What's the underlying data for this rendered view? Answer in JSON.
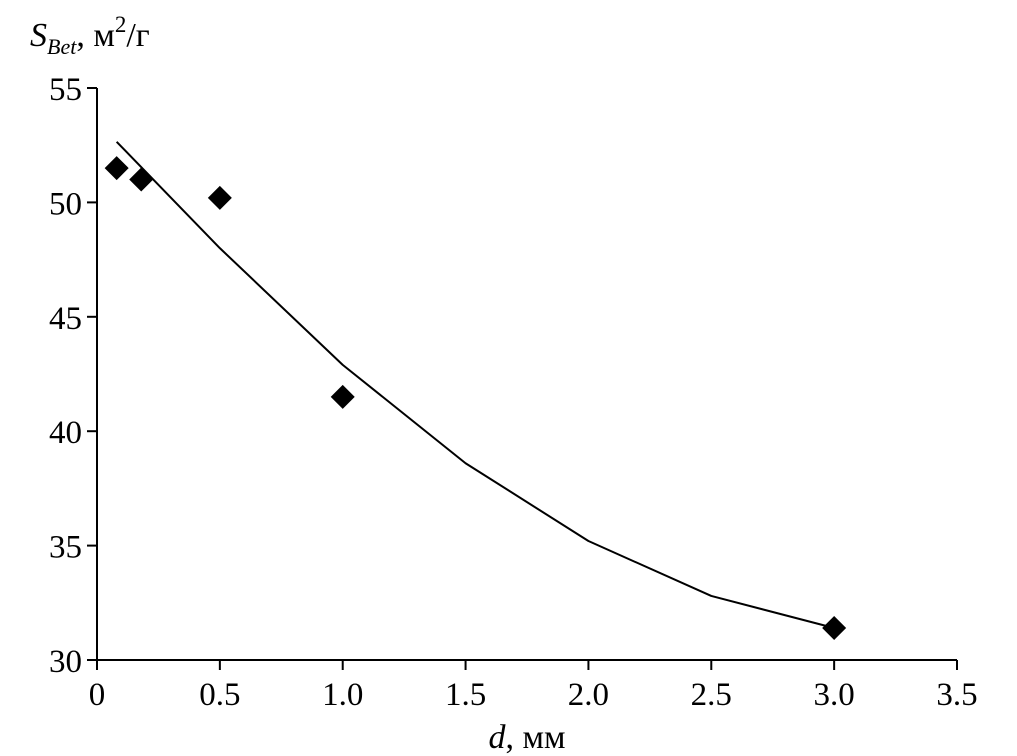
{
  "chart_data": {
    "type": "scatter",
    "xlabel": {
      "symbol": "d",
      "unit": ", мм"
    },
    "ylabel": {
      "symbol": "S",
      "subscript": "Bet",
      "unit_prefix": ", м",
      "superscript": "2",
      "unit_suffix": "/г"
    },
    "xlim": [
      0,
      3.5
    ],
    "ylim": [
      30,
      55
    ],
    "x_ticks": [
      "0",
      "0.5",
      "1.0",
      "1.5",
      "2.0",
      "2.5",
      "3.0",
      "3.5"
    ],
    "y_ticks": [
      "30",
      "35",
      "40",
      "45",
      "50",
      "55"
    ],
    "x_tick_values": [
      0,
      0.5,
      1.0,
      1.5,
      2.0,
      2.5,
      3.0,
      3.5
    ],
    "y_tick_values": [
      30,
      35,
      40,
      45,
      50,
      55
    ],
    "grid": false,
    "series": [
      {
        "marker": "diamond",
        "color": "#000000",
        "points": [
          {
            "x": 0.08,
            "y": 51.5
          },
          {
            "x": 0.18,
            "y": 51.0
          },
          {
            "x": 0.5,
            "y": 50.2
          },
          {
            "x": 1.0,
            "y": 41.5
          },
          {
            "x": 3.0,
            "y": 31.4
          }
        ]
      }
    ],
    "trendline": {
      "type": "polynomial-2",
      "color": "#000000",
      "x_range": [
        0.08,
        3.0
      ],
      "points": [
        {
          "x": 0.08,
          "y": 52.65
        },
        {
          "x": 0.5,
          "y": 48.0
        },
        {
          "x": 1.0,
          "y": 42.9
        },
        {
          "x": 1.5,
          "y": 38.6
        },
        {
          "x": 2.0,
          "y": 35.2
        },
        {
          "x": 2.5,
          "y": 32.8
        },
        {
          "x": 3.0,
          "y": 31.4
        }
      ]
    }
  }
}
